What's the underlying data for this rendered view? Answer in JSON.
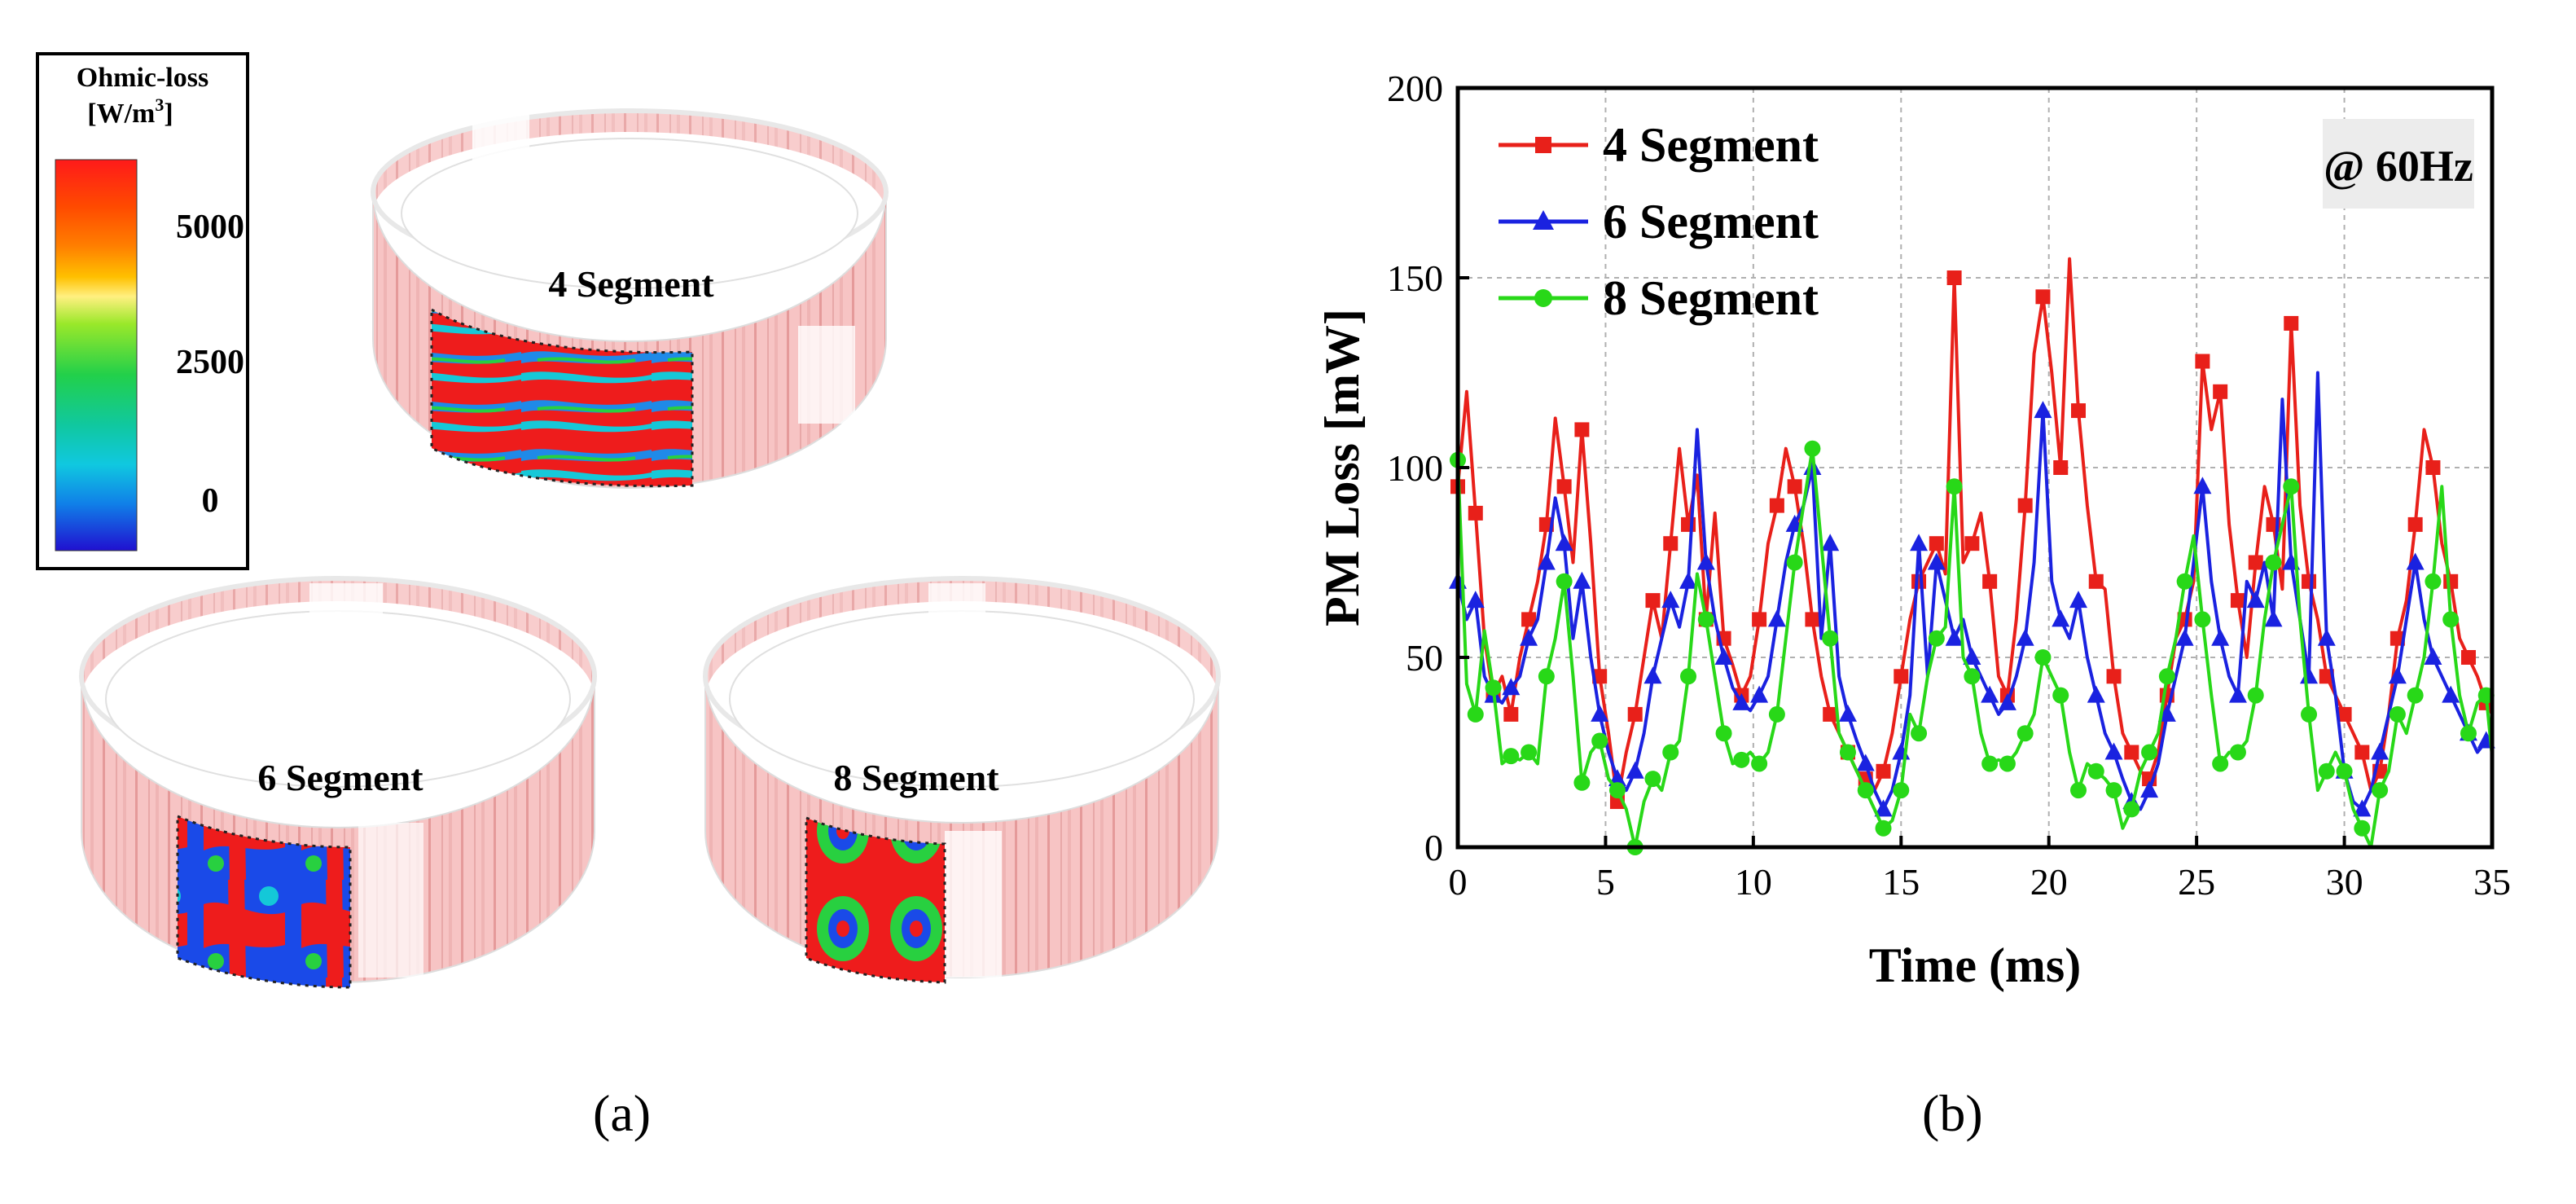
{
  "panel_a": {
    "caption": "(a)",
    "colorbar": {
      "title": "Ohmic-loss",
      "units_prefix": "[W/m",
      "units_power": "3",
      "units_suffix": "]",
      "ticks": [
        "5000",
        "2500",
        "0"
      ],
      "colors": [
        "#ff1a1a",
        "#ff4a00",
        "#ff7e00",
        "#ffb000",
        "#ffe000",
        "#c8f000",
        "#7be82a",
        "#22d04a",
        "#10c89a",
        "#10c8d8",
        "#1090e8",
        "#1040e8",
        "#2010d0"
      ]
    },
    "rings": [
      {
        "label": "4 Segment"
      },
      {
        "label": "6 Segment"
      },
      {
        "label": "8 Segment"
      }
    ]
  },
  "chart_data": {
    "type": "line",
    "caption": "(b)",
    "title": "",
    "annotation": "@ 60Hz",
    "xlabel": "Time (ms)",
    "ylabel": "PM Loss [mW]",
    "xlim": [
      0,
      35
    ],
    "ylim": [
      0,
      200
    ],
    "xticks": [
      0,
      5,
      10,
      15,
      20,
      25,
      30,
      35
    ],
    "yticks": [
      0,
      50,
      100,
      150,
      200
    ],
    "grid": true,
    "legend_position": "top-left",
    "series": [
      {
        "name": "4 Segment",
        "color": "#e8201a",
        "marker": "square",
        "x": [
          0,
          0.3,
          0.6,
          0.9,
          1.2,
          1.5,
          1.8,
          2.1,
          2.4,
          2.7,
          3.0,
          3.3,
          3.6,
          3.9,
          4.2,
          4.5,
          4.8,
          5.1,
          5.4,
          5.7,
          6.0,
          6.3,
          6.6,
          6.9,
          7.2,
          7.5,
          7.8,
          8.1,
          8.4,
          8.7,
          9.0,
          9.3,
          9.6,
          9.9,
          10.2,
          10.5,
          10.8,
          11.1,
          11.4,
          11.7,
          12.0,
          12.3,
          12.6,
          12.9,
          13.2,
          13.5,
          13.8,
          14.1,
          14.4,
          14.7,
          15.0,
          15.3,
          15.6,
          15.9,
          16.2,
          16.5,
          16.8,
          17.1,
          17.4,
          17.7,
          18.0,
          18.3,
          18.6,
          18.9,
          19.2,
          19.5,
          19.8,
          20.1,
          20.4,
          20.7,
          21.0,
          21.3,
          21.6,
          21.9,
          22.2,
          22.5,
          22.8,
          23.1,
          23.4,
          23.7,
          24.0,
          24.3,
          24.6,
          24.9,
          25.2,
          25.5,
          25.8,
          26.1,
          26.4,
          26.7,
          27.0,
          27.3,
          27.6,
          27.9,
          28.2,
          28.5,
          28.8,
          29.1,
          29.4,
          29.7,
          30.0,
          30.3,
          30.6,
          30.9,
          31.2,
          31.5,
          31.8,
          32.1,
          32.4,
          32.7,
          33.0,
          33.3,
          33.6,
          33.9,
          34.2,
          34.5,
          34.8,
          35.0
        ],
        "values": [
          95,
          120,
          88,
          55,
          40,
          45,
          35,
          50,
          60,
          70,
          85,
          113,
          95,
          75,
          110,
          80,
          45,
          30,
          12,
          25,
          35,
          50,
          65,
          55,
          80,
          105,
          85,
          98,
          60,
          88,
          55,
          48,
          40,
          45,
          60,
          80,
          90,
          105,
          95,
          80,
          60,
          45,
          35,
          30,
          25,
          20,
          18,
          15,
          20,
          30,
          45,
          60,
          70,
          75,
          80,
          72,
          150,
          75,
          80,
          88,
          70,
          45,
          40,
          60,
          90,
          130,
          145,
          125,
          100,
          155,
          115,
          90,
          70,
          68,
          45,
          30,
          25,
          20,
          18,
          25,
          40,
          55,
          60,
          70,
          128,
          110,
          120,
          85,
          65,
          50,
          75,
          95,
          85,
          68,
          138,
          90,
          70,
          60,
          45,
          40,
          35,
          30,
          25,
          15,
          20,
          35,
          55,
          65,
          85,
          110,
          100,
          80,
          70,
          55,
          50,
          45,
          38,
          35
        ]
      },
      {
        "name": "6 Segment",
        "color": "#1a22e0",
        "marker": "triangle",
        "x": [
          0,
          0.3,
          0.6,
          0.9,
          1.2,
          1.5,
          1.8,
          2.1,
          2.4,
          2.7,
          3.0,
          3.3,
          3.6,
          3.9,
          4.2,
          4.5,
          4.8,
          5.1,
          5.4,
          5.7,
          6.0,
          6.3,
          6.6,
          6.9,
          7.2,
          7.5,
          7.8,
          8.1,
          8.4,
          8.7,
          9.0,
          9.3,
          9.6,
          9.9,
          10.2,
          10.5,
          10.8,
          11.1,
          11.4,
          11.7,
          12.0,
          12.3,
          12.6,
          12.9,
          13.2,
          13.5,
          13.8,
          14.1,
          14.4,
          14.7,
          15.0,
          15.3,
          15.6,
          15.9,
          16.2,
          16.5,
          16.8,
          17.1,
          17.4,
          17.7,
          18.0,
          18.3,
          18.6,
          18.9,
          19.2,
          19.5,
          19.8,
          20.1,
          20.4,
          20.7,
          21.0,
          21.3,
          21.6,
          21.9,
          22.2,
          22.5,
          22.8,
          23.1,
          23.4,
          23.7,
          24.0,
          24.3,
          24.6,
          24.9,
          25.2,
          25.5,
          25.8,
          26.1,
          26.4,
          26.7,
          27.0,
          27.3,
          27.6,
          27.9,
          28.2,
          28.5,
          28.8,
          29.1,
          29.4,
          29.7,
          30.0,
          30.3,
          30.6,
          30.9,
          31.2,
          31.5,
          31.8,
          32.1,
          32.4,
          32.7,
          33.0,
          33.3,
          33.6,
          33.9,
          34.2,
          34.5,
          34.8,
          35.0
        ],
        "values": [
          70,
          60,
          65,
          45,
          40,
          38,
          42,
          45,
          55,
          60,
          75,
          92,
          80,
          55,
          70,
          50,
          35,
          25,
          18,
          15,
          20,
          30,
          45,
          55,
          65,
          58,
          70,
          110,
          75,
          60,
          50,
          42,
          38,
          36,
          40,
          45,
          60,
          75,
          85,
          90,
          100,
          55,
          80,
          45,
          35,
          28,
          22,
          15,
          10,
          15,
          25,
          40,
          80,
          45,
          75,
          65,
          55,
          60,
          50,
          45,
          40,
          35,
          38,
          45,
          55,
          75,
          115,
          70,
          60,
          55,
          65,
          50,
          40,
          30,
          25,
          18,
          12,
          10,
          15,
          22,
          35,
          45,
          55,
          75,
          95,
          70,
          55,
          45,
          40,
          70,
          65,
          75,
          60,
          118,
          75,
          60,
          45,
          125,
          55,
          40,
          20,
          12,
          10,
          15,
          25,
          35,
          45,
          60,
          75,
          60,
          50,
          45,
          40,
          35,
          30,
          25,
          28,
          30
        ]
      },
      {
        "name": "8 Segment",
        "color": "#28d818",
        "marker": "circle",
        "x": [
          0,
          0.3,
          0.6,
          0.9,
          1.2,
          1.5,
          1.8,
          2.1,
          2.4,
          2.7,
          3.0,
          3.3,
          3.6,
          3.9,
          4.2,
          4.5,
          4.8,
          5.1,
          5.4,
          5.7,
          6.0,
          6.3,
          6.6,
          6.9,
          7.2,
          7.5,
          7.8,
          8.1,
          8.4,
          8.7,
          9.0,
          9.3,
          9.6,
          9.9,
          10.2,
          10.5,
          10.8,
          11.1,
          11.4,
          11.7,
          12.0,
          12.3,
          12.6,
          12.9,
          13.2,
          13.5,
          13.8,
          14.1,
          14.4,
          14.7,
          15.0,
          15.3,
          15.6,
          15.9,
          16.2,
          16.5,
          16.8,
          17.1,
          17.4,
          17.7,
          18.0,
          18.3,
          18.6,
          18.9,
          19.2,
          19.5,
          19.8,
          20.1,
          20.4,
          20.7,
          21.0,
          21.3,
          21.6,
          21.9,
          22.2,
          22.5,
          22.8,
          23.1,
          23.4,
          23.7,
          24.0,
          24.3,
          24.6,
          24.9,
          25.2,
          25.5,
          25.8,
          26.1,
          26.4,
          26.7,
          27.0,
          27.3,
          27.6,
          27.9,
          28.2,
          28.5,
          28.8,
          29.1,
          29.4,
          29.7,
          30.0,
          30.3,
          30.6,
          30.9,
          31.2,
          31.5,
          31.8,
          32.1,
          32.4,
          32.7,
          33.0,
          33.3,
          33.6,
          33.9,
          34.2,
          34.5,
          34.8,
          35.0
        ],
        "values": [
          102,
          43,
          35,
          57,
          42,
          22,
          24,
          23,
          25,
          22,
          45,
          55,
          70,
          45,
          17,
          25,
          28,
          18,
          15,
          10,
          0,
          12,
          18,
          15,
          25,
          28,
          45,
          72,
          60,
          45,
          30,
          22,
          23,
          25,
          22,
          25,
          35,
          55,
          75,
          90,
          105,
          80,
          55,
          30,
          25,
          20,
          15,
          10,
          5,
          7,
          15,
          35,
          30,
          45,
          55,
          58,
          95,
          50,
          45,
          30,
          22,
          23,
          22,
          25,
          30,
          35,
          50,
          45,
          40,
          25,
          15,
          22,
          20,
          18,
          15,
          5,
          10,
          20,
          25,
          30,
          45,
          55,
          70,
          82,
          60,
          40,
          22,
          25,
          25,
          28,
          40,
          60,
          75,
          85,
          95,
          60,
          35,
          15,
          20,
          25,
          20,
          10,
          5,
          0,
          15,
          20,
          35,
          30,
          40,
          50,
          70,
          95,
          60,
          40,
          30,
          38,
          40,
          24
        ]
      }
    ]
  }
}
